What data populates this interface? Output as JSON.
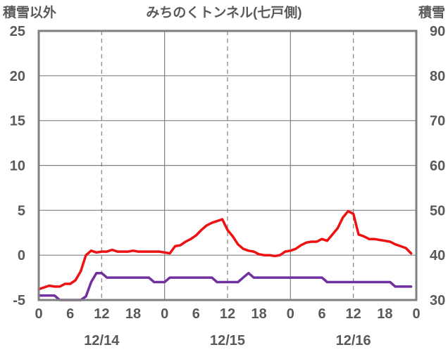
{
  "chart_data": {
    "type": "line",
    "title": "みちのくトンネル(七戸側)",
    "left_axis_label": "積雪以外",
    "right_axis_label": "積雪",
    "left_ylim": [
      -5,
      25
    ],
    "left_yticks": [
      "25",
      "20",
      "15",
      "10",
      "5",
      "0",
      "-5"
    ],
    "right_ylim": [
      30,
      90
    ],
    "right_yticks": [
      "90",
      "80",
      "70",
      "60",
      "50",
      "40",
      "30"
    ],
    "x_range_hours": [
      0,
      72
    ],
    "x_tick_labels": [
      "0",
      "6",
      "12",
      "18",
      "0",
      "6",
      "12",
      "18",
      "0",
      "6",
      "12",
      "18",
      "0"
    ],
    "date_labels": [
      "12/14",
      "12/15",
      "12/16"
    ],
    "grid": true,
    "colors": {
      "red": "#ee1111",
      "purple": "#7030a0",
      "grid": "#808080",
      "frame": "#7f7f7f"
    },
    "series": [
      {
        "color": "#ee1111",
        "axis": "left",
        "x": [
          0,
          1,
          2,
          3,
          4,
          5,
          6,
          7,
          8,
          9,
          10,
          11,
          12,
          13,
          14,
          15,
          16,
          17,
          18,
          19,
          20,
          21,
          22,
          23,
          24,
          25,
          26,
          27,
          28,
          29,
          30,
          31,
          32,
          33,
          34,
          35,
          36,
          37,
          38,
          39,
          40,
          41,
          42,
          43,
          44,
          45,
          46,
          47,
          48,
          49,
          50,
          51,
          52,
          53,
          54,
          55,
          56,
          57,
          58,
          59,
          60,
          61,
          62,
          63,
          64,
          65,
          66,
          67,
          68,
          69,
          70,
          71
        ],
        "y": [
          -3.8,
          -3.6,
          -3.4,
          -3.5,
          -3.5,
          -3.2,
          -3.2,
          -2.8,
          -1.8,
          0.0,
          0.5,
          0.3,
          0.4,
          0.4,
          0.6,
          0.4,
          0.4,
          0.4,
          0.5,
          0.4,
          0.4,
          0.4,
          0.4,
          0.4,
          0.3,
          0.2,
          1.0,
          1.1,
          1.5,
          1.8,
          2.2,
          2.8,
          3.3,
          3.6,
          3.8,
          4.0,
          2.8,
          2.1,
          1.2,
          0.7,
          0.5,
          0.4,
          0.1,
          0.0,
          0.0,
          -0.1,
          0.0,
          0.4,
          0.5,
          0.7,
          1.1,
          1.4,
          1.5,
          1.5,
          1.8,
          1.6,
          2.3,
          3.0,
          4.2,
          4.9,
          4.6,
          2.3,
          2.1,
          1.8,
          1.8,
          1.7,
          1.6,
          1.5,
          1.2,
          1.0,
          0.8,
          0.2
        ]
      },
      {
        "color": "#7030a0",
        "axis": "left",
        "x": [
          0,
          1,
          2,
          3,
          4,
          5,
          6,
          7,
          8,
          9,
          10,
          11,
          12,
          13,
          14,
          15,
          16,
          17,
          18,
          19,
          20,
          21,
          22,
          23,
          24,
          25,
          26,
          27,
          28,
          29,
          30,
          31,
          32,
          33,
          34,
          35,
          36,
          37,
          38,
          39,
          40,
          41,
          42,
          43,
          44,
          45,
          46,
          47,
          48,
          49,
          50,
          51,
          52,
          53,
          54,
          55,
          56,
          57,
          58,
          59,
          60,
          61,
          62,
          63,
          64,
          65,
          66,
          67,
          68,
          69,
          70,
          71
        ],
        "y": [
          -4.5,
          -4.5,
          -4.5,
          -4.5,
          -5.0,
          -5.0,
          -5.0,
          -5.0,
          -5.0,
          -4.6,
          -3.0,
          -2.0,
          -2.0,
          -2.5,
          -2.5,
          -2.5,
          -2.5,
          -2.5,
          -2.5,
          -2.5,
          -2.5,
          -2.5,
          -3.0,
          -3.0,
          -3.0,
          -2.5,
          -2.5,
          -2.5,
          -2.5,
          -2.5,
          -2.5,
          -2.5,
          -2.5,
          -2.5,
          -3.0,
          -3.0,
          -3.0,
          -3.0,
          -3.0,
          -2.5,
          -2.0,
          -2.5,
          -2.5,
          -2.5,
          -2.5,
          -2.5,
          -2.5,
          -2.5,
          -2.5,
          -2.5,
          -2.5,
          -2.5,
          -2.5,
          -2.5,
          -2.5,
          -3.0,
          -3.0,
          -3.0,
          -3.0,
          -3.0,
          -3.0,
          -3.0,
          -3.0,
          -3.0,
          -3.0,
          -3.0,
          -3.0,
          -3.0,
          -3.5,
          -3.5,
          -3.5,
          -3.5
        ]
      }
    ]
  }
}
